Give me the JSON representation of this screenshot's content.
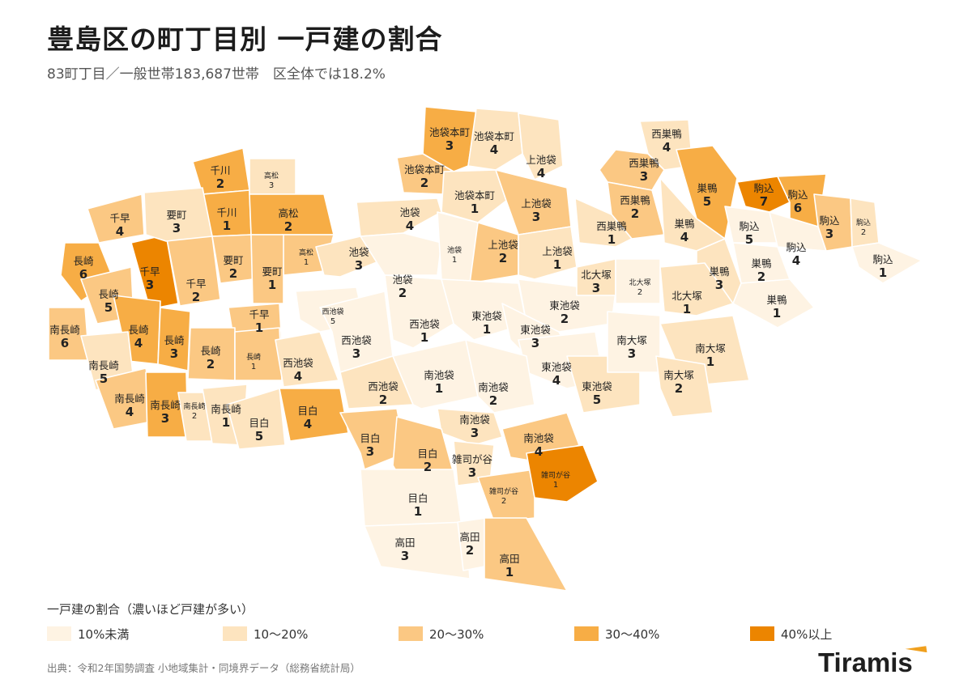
{
  "title": "豊島区の町丁目別 一戸建の割合",
  "subtitle": "83町丁目／一般世帯183,687世帯　区全体では18.2%",
  "legend": {
    "title": "一戸建の割合（濃いほど戸建が多い）",
    "items": [
      {
        "label": "10%未満",
        "color": "#fef3e3"
      },
      {
        "label": "10〜20%",
        "color": "#fde4bf"
      },
      {
        "label": "20〜30%",
        "color": "#fbc883"
      },
      {
        "label": "30〜40%",
        "color": "#f7ad45"
      },
      {
        "label": "40%以上",
        "color": "#ec8500"
      }
    ]
  },
  "source": "出典：令和2年国勢調査 小地域集計・同境界データ（総務省統計局）",
  "brand": "Tiramis",
  "accent_color": "#f0a01e",
  "districts": [
    {
      "name": "池袋本町",
      "num": "3",
      "level": 3
    },
    {
      "name": "池袋本町",
      "num": "4",
      "level": 1
    },
    {
      "name": "池袋本町",
      "num": "2",
      "level": 2
    },
    {
      "name": "池袋本町",
      "num": "1",
      "level": 1
    },
    {
      "name": "上池袋",
      "num": "4",
      "level": 1
    },
    {
      "name": "上池袋",
      "num": "3",
      "level": 2
    },
    {
      "name": "上池袋",
      "num": "2",
      "level": 2
    },
    {
      "name": "上池袋",
      "num": "1",
      "level": 1
    },
    {
      "name": "西巣鴨",
      "num": "4",
      "level": 1
    },
    {
      "name": "西巣鴨",
      "num": "3",
      "level": 2
    },
    {
      "name": "西巣鴨",
      "num": "2",
      "level": 2
    },
    {
      "name": "西巣鴨",
      "num": "1",
      "level": 1
    },
    {
      "name": "巣鴨",
      "num": "5",
      "level": 3
    },
    {
      "name": "巣鴨",
      "num": "4",
      "level": 1
    },
    {
      "name": "巣鴨",
      "num": "3",
      "level": 1
    },
    {
      "name": "巣鴨",
      "num": "2",
      "level": 0
    },
    {
      "name": "巣鴨",
      "num": "1",
      "level": 0
    },
    {
      "name": "駒込",
      "num": "7",
      "level": 4
    },
    {
      "name": "駒込",
      "num": "6",
      "level": 3
    },
    {
      "name": "駒込",
      "num": "5",
      "level": 0
    },
    {
      "name": "駒込",
      "num": "4",
      "level": 0
    },
    {
      "name": "駒込",
      "num": "3",
      "level": 2
    },
    {
      "name": "駒込",
      "num": "2",
      "level": 1
    },
    {
      "name": "駒込",
      "num": "1",
      "level": 0
    },
    {
      "name": "千川",
      "num": "2",
      "level": 3
    },
    {
      "name": "千川",
      "num": "1",
      "level": 3
    },
    {
      "name": "高松",
      "num": "3",
      "level": 1
    },
    {
      "name": "高松",
      "num": "2",
      "level": 3
    },
    {
      "name": "高松",
      "num": "1",
      "level": 2
    },
    {
      "name": "千早",
      "num": "4",
      "level": 2
    },
    {
      "name": "千早",
      "num": "3",
      "level": 4
    },
    {
      "name": "千早",
      "num": "2",
      "level": 2
    },
    {
      "name": "千早",
      "num": "1",
      "level": 2
    },
    {
      "name": "要町",
      "num": "3",
      "level": 1
    },
    {
      "name": "要町",
      "num": "2",
      "level": 2
    },
    {
      "name": "要町",
      "num": "1",
      "level": 2
    },
    {
      "name": "長崎",
      "num": "6",
      "level": 3
    },
    {
      "name": "長崎",
      "num": "5",
      "level": 2
    },
    {
      "name": "長崎",
      "num": "4",
      "level": 3
    },
    {
      "name": "長崎",
      "num": "3",
      "level": 3
    },
    {
      "name": "長崎",
      "num": "2",
      "level": 2
    },
    {
      "name": "長崎",
      "num": "1",
      "level": 2
    },
    {
      "name": "南長崎",
      "num": "6",
      "level": 2
    },
    {
      "name": "南長崎",
      "num": "5",
      "level": 1
    },
    {
      "name": "南長崎",
      "num": "4",
      "level": 2
    },
    {
      "name": "南長崎",
      "num": "3",
      "level": 3
    },
    {
      "name": "南長崎",
      "num": "2",
      "level": 1
    },
    {
      "name": "南長崎",
      "num": "1",
      "level": 1
    },
    {
      "name": "池袋",
      "num": "4",
      "level": 1
    },
    {
      "name": "池袋",
      "num": "3",
      "level": 1
    },
    {
      "name": "池袋",
      "num": "2",
      "level": 0
    },
    {
      "name": "池袋",
      "num": "1",
      "level": 0
    },
    {
      "name": "西池袋",
      "num": "5",
      "level": 0
    },
    {
      "name": "西池袋",
      "num": "4",
      "level": 1
    },
    {
      "name": "西池袋",
      "num": "3",
      "level": 0
    },
    {
      "name": "西池袋",
      "num": "2",
      "level": 1
    },
    {
      "name": "西池袋",
      "num": "1",
      "level": 0
    },
    {
      "name": "東池袋",
      "num": "1",
      "level": 0
    },
    {
      "name": "東池袋",
      "num": "2",
      "level": 0
    },
    {
      "name": "東池袋",
      "num": "3",
      "level": 0
    },
    {
      "name": "東池袋",
      "num": "4",
      "level": 0
    },
    {
      "name": "東池袋",
      "num": "5",
      "level": 1
    },
    {
      "name": "北大塚",
      "num": "3",
      "level": 1
    },
    {
      "name": "北大塚",
      "num": "2",
      "level": 0
    },
    {
      "name": "北大塚",
      "num": "1",
      "level": 1
    },
    {
      "name": "南大塚",
      "num": "3",
      "level": 0
    },
    {
      "name": "南大塚",
      "num": "1",
      "level": 1
    },
    {
      "name": "南大塚",
      "num": "2",
      "level": 1
    },
    {
      "name": "南池袋",
      "num": "1",
      "level": 0
    },
    {
      "name": "南池袋",
      "num": "2",
      "level": 0
    },
    {
      "name": "南池袋",
      "num": "3",
      "level": 1
    },
    {
      "name": "南池袋",
      "num": "4",
      "level": 2
    },
    {
      "name": "目白",
      "num": "5",
      "level": 1
    },
    {
      "name": "目白",
      "num": "4",
      "level": 3
    },
    {
      "name": "目白",
      "num": "3",
      "level": 2
    },
    {
      "name": "目白",
      "num": "2",
      "level": 2
    },
    {
      "name": "目白",
      "num": "1",
      "level": 0
    },
    {
      "name": "雑司が谷",
      "num": "3",
      "level": 1
    },
    {
      "name": "雑司が谷",
      "num": "2",
      "level": 2
    },
    {
      "name": "雑司が谷",
      "num": "1",
      "level": 4
    },
    {
      "name": "高田",
      "num": "3",
      "level": 0
    },
    {
      "name": "高田",
      "num": "2",
      "level": 0
    },
    {
      "name": "高田",
      "num": "1",
      "level": 2
    }
  ]
}
